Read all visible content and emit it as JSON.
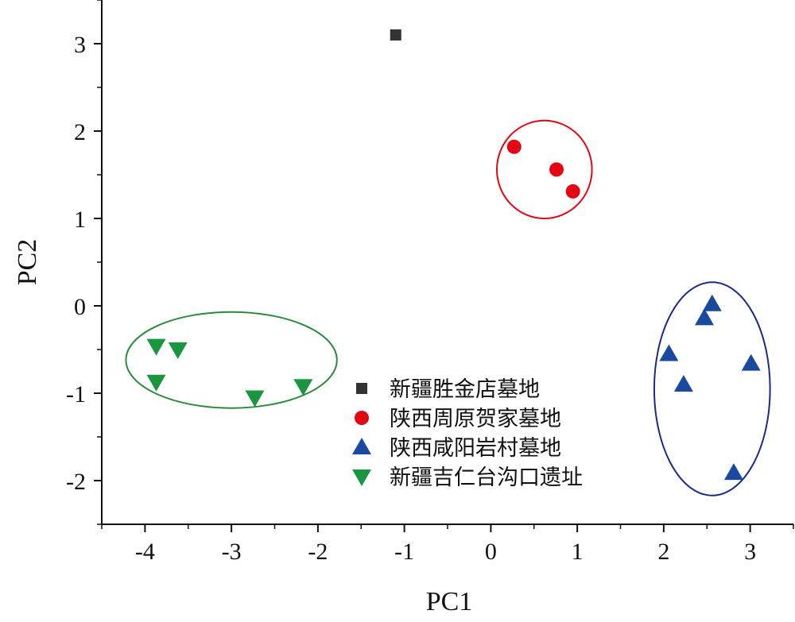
{
  "chart_data": {
    "type": "scatter",
    "xlabel": "PC1",
    "ylabel": "PC2",
    "xlim": [
      -4.5,
      3.5
    ],
    "ylim": [
      -2.5,
      3.5
    ],
    "x_ticks": [
      -4,
      -3,
      -2,
      -1,
      0,
      1,
      2,
      3
    ],
    "y_ticks": [
      -2,
      -1,
      0,
      1,
      2,
      3
    ],
    "x_tick_labels": [
      "-4",
      "-3",
      "-2",
      "-1",
      "0",
      "1",
      "2",
      "3"
    ],
    "y_tick_labels": [
      "-2",
      "-1",
      "0",
      "1",
      "2",
      "3"
    ],
    "grid": false,
    "legend_position": "bottom-center",
    "series": [
      {
        "name": "新疆胜金店墓地",
        "marker": "square",
        "color": "#333333",
        "points": [
          [
            -1.1,
            3.1
          ]
        ]
      },
      {
        "name": "陕西周原贺家墓地",
        "marker": "circle",
        "color": "#e30613",
        "points": [
          [
            0.27,
            1.82
          ],
          [
            0.76,
            1.56
          ],
          [
            0.95,
            1.31
          ]
        ],
        "ellipse": {
          "cx": 0.62,
          "cy": 1.56,
          "rx": 0.55,
          "ry": 0.56
        }
      },
      {
        "name": "陕西咸阳岩村墓地",
        "marker": "triangle-up",
        "color": "#1a4aa0",
        "points": [
          [
            2.56,
            0.02
          ],
          [
            2.47,
            -0.14
          ],
          [
            2.06,
            -0.55
          ],
          [
            3.01,
            -0.66
          ],
          [
            2.23,
            -0.9
          ],
          [
            2.81,
            -1.91
          ]
        ],
        "ellipse": {
          "cx": 2.56,
          "cy": -0.95,
          "rx": 0.67,
          "ry": 1.22
        },
        "ellipse_color": "#1c2a8a"
      },
      {
        "name": "新疆吉仁台沟口遗址",
        "marker": "triangle-down",
        "color": "#1a9641",
        "points": [
          [
            -3.87,
            -0.46
          ],
          [
            -3.62,
            -0.5
          ],
          [
            -3.87,
            -0.87
          ],
          [
            -2.73,
            -1.05
          ],
          [
            -2.17,
            -0.92
          ]
        ],
        "ellipse": {
          "cx": -3.0,
          "cy": -0.62,
          "rx": 1.22,
          "ry": 0.55
        },
        "ellipse_color": "#2a8a3a"
      }
    ]
  }
}
